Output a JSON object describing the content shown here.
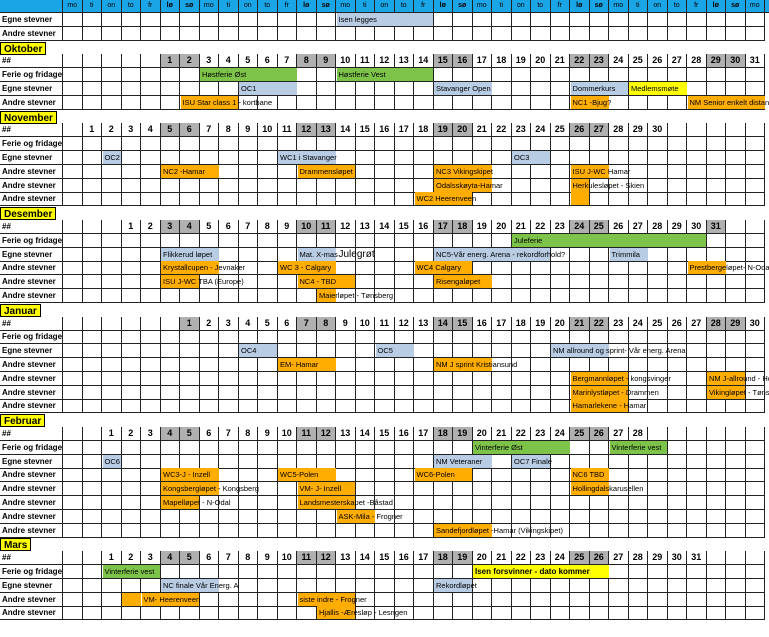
{
  "weekday_header": {
    "label": "",
    "days": [
      "mo",
      "ti",
      "on",
      "to",
      "fr",
      "lø",
      "sø",
      "mo",
      "ti",
      "on",
      "to",
      "fr",
      "lø",
      "sø",
      "mo",
      "ti",
      "on",
      "to",
      "fr",
      "lø",
      "sø",
      "mo",
      "ti",
      "on",
      "to",
      "fr",
      "lø",
      "sø",
      "mo",
      "ti",
      "on",
      "to",
      "fr",
      "lø",
      "sø",
      "mo",
      "ti"
    ]
  },
  "top_rows": [
    {
      "label": "Egne stevner",
      "events": [
        {
          "text": "Isen legges",
          "start": 15,
          "span": 5,
          "color": "blue"
        }
      ]
    },
    {
      "label": "Andre stevner",
      "events": []
    }
  ],
  "months": [
    {
      "name": "Oktober",
      "hash": "##",
      "first_col": 6,
      "days": 31,
      "rows": [
        {
          "label": "Ferie og fridager",
          "events": [
            {
              "text": "Høstferie Øst",
              "start": 8,
              "span": 5,
              "color": "green"
            },
            {
              "text": "Høstferie Vest",
              "start": 15,
              "span": 5,
              "color": "green"
            }
          ]
        },
        {
          "label": "Egne stevner",
          "events": [
            {
              "text": "OC1",
              "start": 10,
              "span": 3,
              "color": "blue"
            },
            {
              "text": "Stavanger Open",
              "start": 20,
              "span": 3,
              "color": "blue"
            },
            {
              "text": "Dommerkurs",
              "start": 27,
              "span": 3,
              "color": "blue"
            },
            {
              "text": "Medlemsmøte",
              "start": 30,
              "span": 3,
              "color": "yellow"
            }
          ]
        },
        {
          "label": "Andre stevner",
          "events": [
            {
              "text": "ISU Star class 1 - kortbane",
              "start": 7,
              "span": 3,
              "color": "orange"
            },
            {
              "text": "NC1 -Bjug?",
              "start": 27,
              "span": 2,
              "color": "orange"
            },
            {
              "text": "NM Senior enkelt distanser -",
              "start": 33,
              "span": 4,
              "color": "orange"
            }
          ]
        }
      ]
    },
    {
      "name": "November",
      "hash": "##",
      "first_col": 2,
      "days": 30,
      "rows": [
        {
          "label": "Ferie og fridager",
          "events": []
        },
        {
          "label": "Egne stevner",
          "events": [
            {
              "text": "OC2",
              "start": 3,
              "span": 1,
              "color": "blue"
            },
            {
              "text": "WC1 i Stavanger",
              "start": 12,
              "span": 3,
              "color": "blue"
            },
            {
              "text": "OC3",
              "start": 24,
              "span": 2,
              "color": "blue"
            }
          ]
        },
        {
          "label": "Andre stevner",
          "events": [
            {
              "text": "NC2 -Hamar",
              "start": 6,
              "span": 3,
              "color": "orange"
            },
            {
              "text": "Drammensløpet",
              "start": 13,
              "span": 3,
              "color": "orange"
            },
            {
              "text": "NC3 Vikingskipet",
              "start": 20,
              "span": 3,
              "color": "orange"
            },
            {
              "text": "ISU J-WC Hamar",
              "start": 27,
              "span": 2,
              "color": "orange"
            }
          ]
        },
        {
          "label": "Andre stevner",
          "events": [
            {
              "text": "Odalsskøyta-Hamar",
              "start": 20,
              "span": 3,
              "color": "orange"
            },
            {
              "text": "Herkulesløpet - Skien",
              "start": 27,
              "span": 1,
              "color": "orange"
            }
          ]
        },
        {
          "label": "Andre stevner",
          "events": [
            {
              "text": "WC2 Heerenveen",
              "start": 19,
              "span": 3,
              "color": "orange"
            },
            {
              "text": "",
              "start": 27,
              "span": 1,
              "color": "orange"
            }
          ]
        }
      ]
    },
    {
      "name": "Desember",
      "hash": "##",
      "first_col": 4,
      "days": 31,
      "rows": [
        {
          "label": "Ferie og fridager",
          "events": [
            {
              "text": "Juleferie",
              "start": 24,
              "span": 10,
              "color": "green"
            }
          ]
        },
        {
          "label": "Egne stevner",
          "events": [
            {
              "text": "Flikkerud løpet",
              "start": 6,
              "span": 3,
              "color": "blue"
            },
            {
              "text": "Mat. X-mas",
              "start": 13,
              "span": 2,
              "color": "blue"
            },
            {
              "text": "Julegrøt",
              "start": 15,
              "span": 2,
              "color": "plain",
              "big": true
            },
            {
              "text": "NC5-Vår energ. Arena - rekordforhold?",
              "start": 20,
              "span": 6,
              "color": "blue"
            },
            {
              "text": "Trimmila",
              "start": 29,
              "span": 2,
              "color": "blue"
            }
          ]
        },
        {
          "label": "Andre stevner",
          "events": [
            {
              "text": "Krystallcupen - Jevnaker",
              "start": 6,
              "span": 3,
              "color": "orange"
            },
            {
              "text": "WC 3 - Calgary",
              "start": 12,
              "span": 3,
              "color": "orange"
            },
            {
              "text": "WC4 Calgary",
              "start": 19,
              "span": 3,
              "color": "orange"
            },
            {
              "text": "Prestbergeløpet- N-Odal",
              "start": 33,
              "span": 2,
              "color": "orange"
            }
          ]
        },
        {
          "label": "Andre stevner",
          "events": [
            {
              "text": "ISU J-WC TBA (Europe)",
              "start": 6,
              "span": 2,
              "color": "orange"
            },
            {
              "text": "NC4 - TBD",
              "start": 13,
              "span": 3,
              "color": "orange"
            },
            {
              "text": "Risengaløpet",
              "start": 20,
              "span": 3,
              "color": "orange"
            }
          ]
        },
        {
          "label": "Andre stevner",
          "events": [
            {
              "text": "Maierløpet - Tønsberg",
              "start": 14,
              "span": 1,
              "color": "orange"
            }
          ]
        }
      ]
    },
    {
      "name": "Januar",
      "hash": "##",
      "first_col": 7,
      "days": 31,
      "rows": [
        {
          "label": "Ferie og fridager",
          "events": []
        },
        {
          "label": "Egne stevner",
          "events": [
            {
              "text": "OC4",
              "start": 10,
              "span": 2,
              "color": "blue"
            },
            {
              "text": "OC5",
              "start": 17,
              "span": 2,
              "color": "blue"
            },
            {
              "text": "NM allround og sprint- Vår energ. Arena",
              "start": 26,
              "span": 3,
              "color": "blue"
            }
          ]
        },
        {
          "label": "Andre stevner",
          "events": [
            {
              "text": "EM- Hamar",
              "start": 12,
              "span": 3,
              "color": "orange"
            },
            {
              "text": "NM J sprint Kristiansund",
              "start": 20,
              "span": 3,
              "color": "orange"
            }
          ]
        },
        {
          "label": "Andre stevner",
          "events": [
            {
              "text": "Bergmannløpet - kongsvinger",
              "start": 27,
              "span": 3,
              "color": "orange"
            },
            {
              "text": "NM J-allround - Horsta",
              "start": 34,
              "span": 2,
              "color": "orange"
            }
          ]
        },
        {
          "label": "Andre stevner",
          "events": [
            {
              "text": "Marinlystløpet - Drammen",
              "start": 27,
              "span": 3,
              "color": "orange"
            },
            {
              "text": "Vikingløpet - Tønsberg",
              "start": 34,
              "span": 2,
              "color": "orange"
            }
          ]
        },
        {
          "label": "Andre stevner",
          "events": [
            {
              "text": "Hamarlekene - Hamar",
              "start": 27,
              "span": 3,
              "color": "orange"
            }
          ]
        }
      ]
    },
    {
      "name": "Februar",
      "hash": "##",
      "first_col": 3,
      "days": 28,
      "rows": [
        {
          "label": "Ferie og fridager",
          "events": [
            {
              "text": "Vinterferie Øst",
              "start": 22,
              "span": 5,
              "color": "green"
            },
            {
              "text": "Vinterferie vest",
              "start": 29,
              "span": 3,
              "color": "green"
            }
          ]
        },
        {
          "label": "Egne stevner",
          "events": [
            {
              "text": "OC6",
              "start": 3,
              "span": 1,
              "color": "blue"
            },
            {
              "text": "NM Veteraner",
              "start": 20,
              "span": 3,
              "color": "blue"
            },
            {
              "text": "OC7 Finale",
              "start": 24,
              "span": 2,
              "color": "blue"
            }
          ]
        },
        {
          "label": "Andre stevner",
          "events": [
            {
              "text": "WC3-J - Inzell",
              "start": 6,
              "span": 3,
              "color": "orange"
            },
            {
              "text": "WC5-Polen",
              "start": 12,
              "span": 3,
              "color": "orange"
            },
            {
              "text": "WC6-Polen",
              "start": 19,
              "span": 3,
              "color": "orange"
            },
            {
              "text": "NC6 TBD",
              "start": 27,
              "span": 2,
              "color": "orange"
            }
          ]
        },
        {
          "label": "Andre stevner",
          "events": [
            {
              "text": "Kongsbergløpet - Kongsberg",
              "start": 6,
              "span": 3,
              "color": "orange"
            },
            {
              "text": "VM- J- Inzell",
              "start": 13,
              "span": 3,
              "color": "orange"
            },
            {
              "text": "Hollingdalskarusellen",
              "start": 27,
              "span": 2,
              "color": "orange"
            }
          ]
        },
        {
          "label": "Andre stevner",
          "events": [
            {
              "text": "Mapelløpet - N-Odal",
              "start": 6,
              "span": 2,
              "color": "orange"
            },
            {
              "text": "Landsmesterskapet -Båstad",
              "start": 13,
              "span": 3,
              "color": "orange"
            }
          ]
        },
        {
          "label": "Andre stevner",
          "events": [
            {
              "text": "ASK-Mila - Frogner",
              "start": 15,
              "span": 2,
              "color": "orange"
            }
          ]
        },
        {
          "label": "Andre stevner",
          "events": [
            {
              "text": "Sandefjordløpet -Hamar (Vikingskipet)",
              "start": 20,
              "span": 3,
              "color": "orange"
            }
          ]
        }
      ]
    },
    {
      "name": "Mars",
      "hash": "##",
      "first_col": 3,
      "days": 31,
      "rows": [
        {
          "label": "Ferie og fridager",
          "events": [
            {
              "text": "Vinterferie vest",
              "start": 3,
              "span": 3,
              "color": "green"
            },
            {
              "text": "Isen forsvinner - dato kommer",
              "start": 22,
              "span": 7,
              "color": "yellow",
              "bold": true
            }
          ]
        },
        {
          "label": "Egne stevner",
          "events": [
            {
              "text": "NC finale Vår Energ. A",
              "start": 6,
              "span": 3,
              "color": "blue"
            },
            {
              "text": "Rekordløpet",
              "start": 20,
              "span": 2,
              "color": "blue"
            }
          ]
        },
        {
          "label": "Andre stevner",
          "events": [
            {
              "text": "",
              "start": 4,
              "span": 1,
              "color": "orange"
            },
            {
              "text": "VM- Heerenveen",
              "start": 5,
              "span": 3,
              "color": "orange"
            },
            {
              "text": "siste indre - Frogner",
              "start": 13,
              "span": 3,
              "color": "orange"
            }
          ]
        },
        {
          "label": "Andre stevner",
          "events": [
            {
              "text": "Hjallis -Æresløp - Lesngen",
              "start": 14,
              "span": 2,
              "color": "orange"
            }
          ]
        }
      ]
    }
  ]
}
